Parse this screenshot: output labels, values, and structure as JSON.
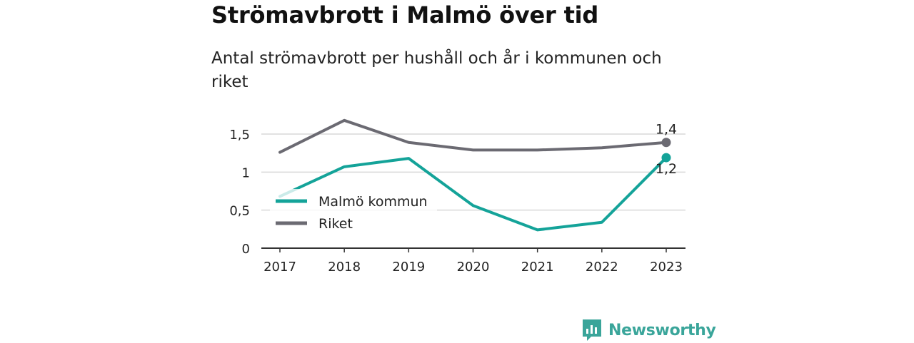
{
  "title": "Strömavbrott i Malmö över tid",
  "subtitle": "Antal strömavbrott per hushåll och år i kommunen och riket",
  "brand": "Newsworthy",
  "colors": {
    "malmo": "#14a399",
    "riket": "#6b6a72",
    "grid": "#d9d9d9",
    "axis": "#333333",
    "brand": "#3aa59a"
  },
  "chart_data": {
    "type": "line",
    "x": [
      "2017",
      "2018",
      "2019",
      "2020",
      "2021",
      "2022",
      "2023"
    ],
    "ylim": [
      0,
      1.8
    ],
    "yticks": [
      {
        "value": 0,
        "label": "0"
      },
      {
        "value": 0.5,
        "label": "0,5"
      },
      {
        "value": 1,
        "label": "1"
      },
      {
        "value": 1.5,
        "label": "1,5"
      }
    ],
    "grid": true,
    "legend": "left-middle",
    "series": [
      {
        "name": "Malmö kommun",
        "values": [
          0.68,
          1.07,
          1.18,
          0.56,
          0.24,
          0.34,
          1.19
        ],
        "end_label": "1,2"
      },
      {
        "name": "Riket",
        "values": [
          1.26,
          1.68,
          1.39,
          1.29,
          1.29,
          1.32,
          1.39
        ],
        "end_label": "1,4"
      }
    ]
  }
}
